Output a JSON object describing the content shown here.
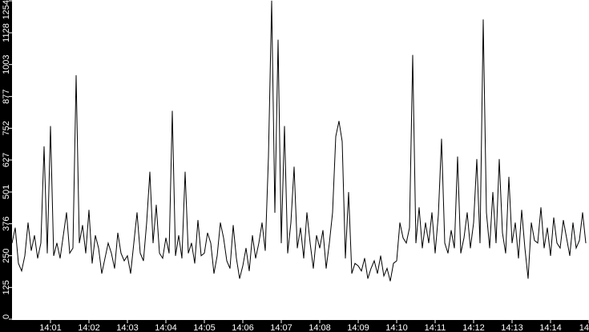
{
  "chart_data": {
    "type": "line",
    "title": "",
    "xlabel": "",
    "ylabel": "",
    "ylim": [
      0,
      1254
    ],
    "xlim": [
      "14:00:00",
      "14:15:00"
    ],
    "grid": false,
    "y_ticks": [
      "0",
      "125",
      "250",
      "376",
      "501",
      "627",
      "752",
      "877",
      "1003",
      "1128",
      "1254"
    ],
    "x_ticks": [
      "14:01",
      "14:02",
      "14:03",
      "14:04",
      "14:05",
      "14:06",
      "14:07",
      "14:08",
      "14:09",
      "14:10",
      "14:11",
      "14:12",
      "14:13",
      "14:14",
      "14"
    ],
    "x_start": "14:00:00",
    "x_interval_seconds": 5,
    "colors": {
      "line": "#000000",
      "axis_band": "#000000",
      "axis_text": "#ffffff",
      "background": "#ffffff"
    },
    "series": [
      {
        "values": [
          300,
          360,
          220,
          190,
          250,
          380,
          270,
          330,
          240,
          300,
          680,
          260,
          760,
          250,
          300,
          240,
          330,
          420,
          260,
          280,
          960,
          300,
          370,
          260,
          430,
          220,
          330,
          280,
          180,
          240,
          300,
          260,
          200,
          340,
          260,
          230,
          250,
          180,
          300,
          420,
          260,
          230,
          380,
          580,
          300,
          450,
          260,
          240,
          320,
          260,
          820,
          250,
          330,
          240,
          580,
          260,
          300,
          220,
          390,
          250,
          260,
          340,
          300,
          180,
          250,
          380,
          320,
          230,
          200,
          370,
          240,
          160,
          210,
          280,
          190,
          330,
          240,
          300,
          380,
          270,
          640,
          1254,
          420,
          1100,
          300,
          760,
          260,
          380,
          600,
          280,
          360,
          240,
          420,
          300,
          200,
          330,
          280,
          350,
          200,
          300,
          420,
          720,
          780,
          700,
          240,
          500,
          180,
          220,
          210,
          190,
          240,
          160,
          200,
          230,
          180,
          250,
          170,
          200,
          150,
          220,
          230,
          380,
          320,
          300,
          360,
          1040,
          300,
          440,
          280,
          380,
          300,
          420,
          260,
          410,
          710,
          300,
          260,
          350,
          280,
          640,
          260,
          320,
          420,
          280,
          380,
          630,
          300,
          1180,
          420,
          280,
          500,
          300,
          630,
          340,
          260,
          560,
          300,
          380,
          240,
          430,
          280,
          160,
          380,
          310,
          300,
          440,
          280,
          360,
          250,
          400,
          300,
          280,
          390,
          320,
          250,
          380,
          280,
          310,
          420,
          300
        ]
      }
    ]
  }
}
